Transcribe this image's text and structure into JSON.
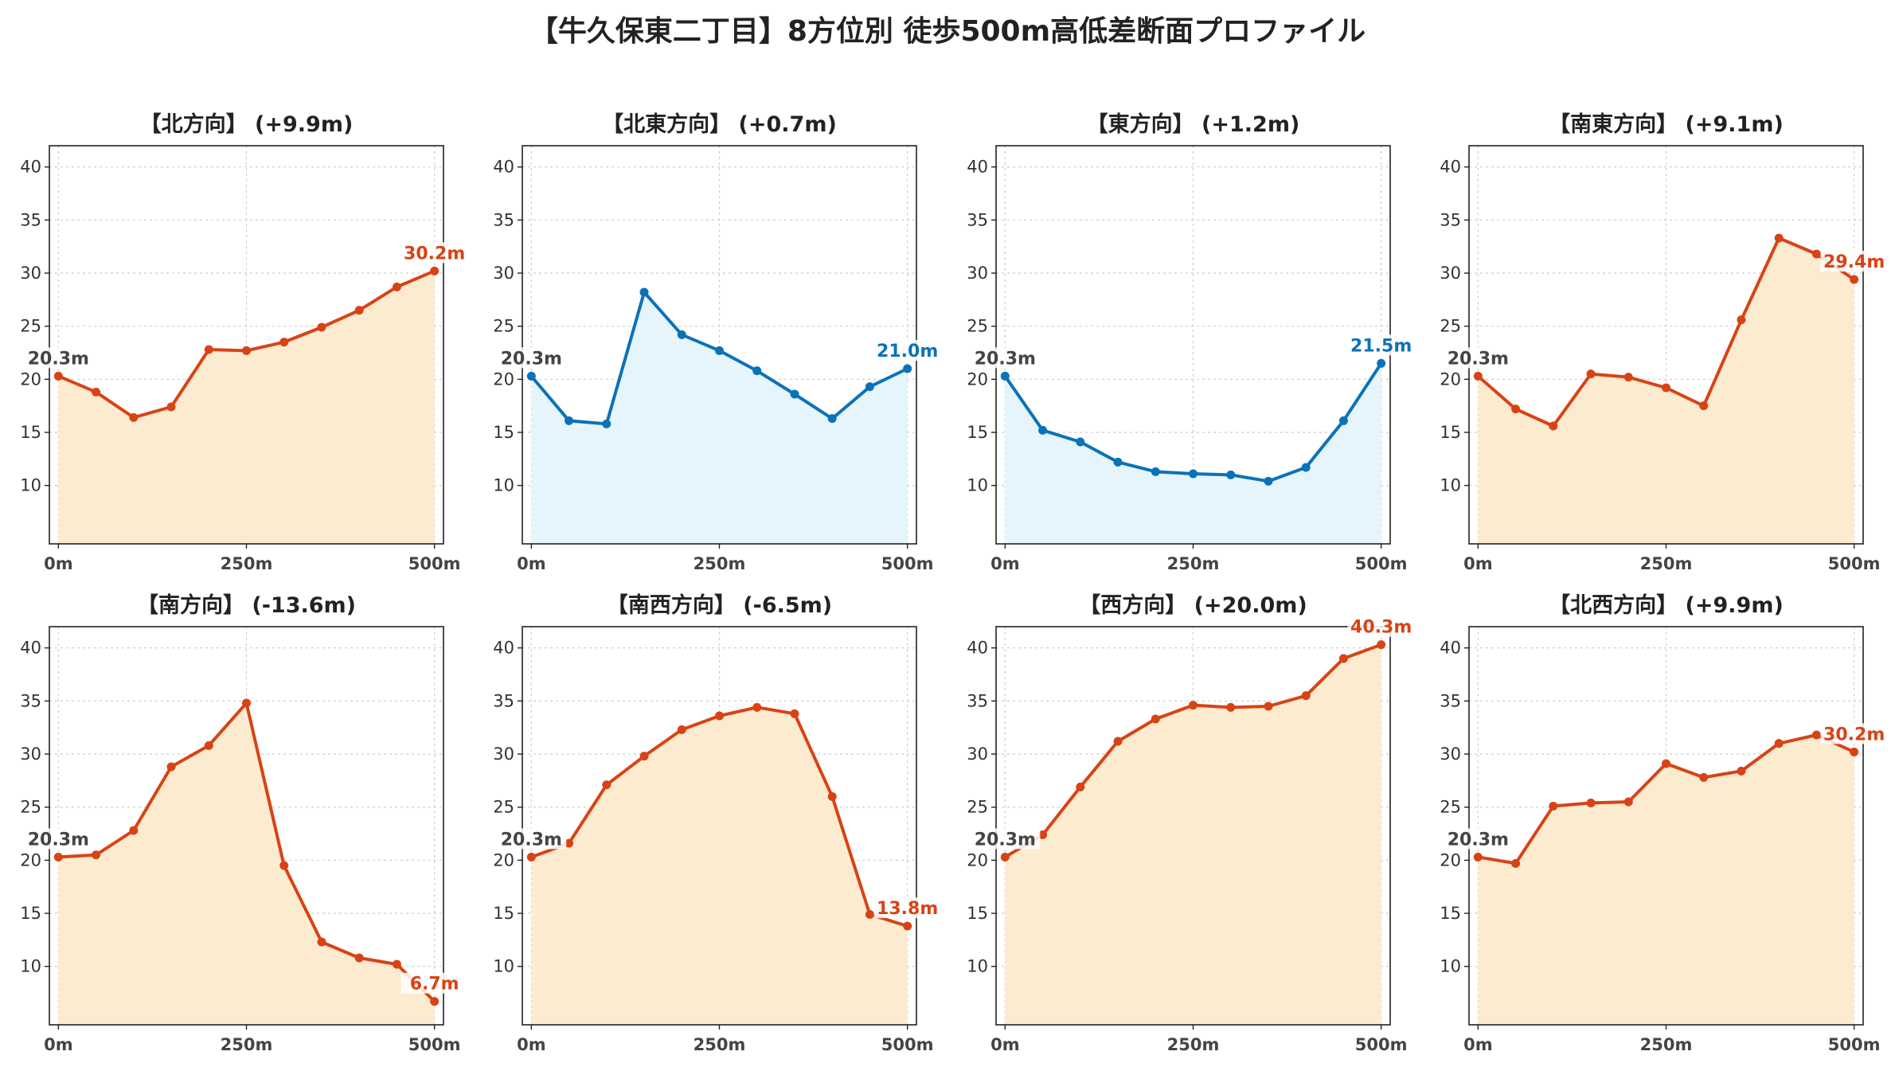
{
  "title": "【牛久保東二丁目】8方位別 徒歩500m高低差断面プロファイル",
  "colors": {
    "up_line": "#d84315",
    "up_fill": "#fdebd0",
    "down_line": "#0b72b8",
    "down_fill": "#e6f5fb",
    "start_label": "#444444",
    "grid": "#cccccc"
  },
  "chart_data": [
    {
      "type": "area",
      "title": "【北方向】 (+9.9m)",
      "trend": "up",
      "x": [
        0,
        50,
        100,
        150,
        200,
        250,
        300,
        350,
        400,
        450,
        500
      ],
      "values": [
        20.3,
        18.8,
        16.4,
        17.4,
        22.8,
        22.7,
        23.5,
        24.9,
        26.5,
        28.7,
        30.2
      ],
      "xticks": [
        0,
        250,
        500
      ],
      "xtick_labels": [
        "0m",
        "250m",
        "500m"
      ],
      "yticks": [
        10,
        15,
        20,
        25,
        30,
        35,
        40
      ],
      "ylim": [
        4.5,
        42
      ],
      "xlim": [
        -12,
        512
      ],
      "grid": true,
      "start_label": "20.3m",
      "end_label": "30.2m"
    },
    {
      "type": "area",
      "title": "【北東方向】 (+0.7m)",
      "trend": "down",
      "x": [
        0,
        50,
        100,
        150,
        200,
        250,
        300,
        350,
        400,
        450,
        500
      ],
      "values": [
        20.3,
        16.1,
        15.8,
        28.2,
        24.2,
        22.7,
        20.8,
        18.6,
        16.3,
        19.3,
        21.0
      ],
      "xticks": [
        0,
        250,
        500
      ],
      "xtick_labels": [
        "0m",
        "250m",
        "500m"
      ],
      "yticks": [
        10,
        15,
        20,
        25,
        30,
        35,
        40
      ],
      "ylim": [
        4.5,
        42
      ],
      "xlim": [
        -12,
        512
      ],
      "grid": true,
      "start_label": "20.3m",
      "end_label": "21.0m"
    },
    {
      "type": "area",
      "title": "【東方向】 (+1.2m)",
      "trend": "down",
      "x": [
        0,
        50,
        100,
        150,
        200,
        250,
        300,
        350,
        400,
        450,
        500
      ],
      "values": [
        20.3,
        15.2,
        14.1,
        12.2,
        11.3,
        11.1,
        11.0,
        10.4,
        11.7,
        16.1,
        21.5
      ],
      "xticks": [
        0,
        250,
        500
      ],
      "xtick_labels": [
        "0m",
        "250m",
        "500m"
      ],
      "yticks": [
        10,
        15,
        20,
        25,
        30,
        35,
        40
      ],
      "ylim": [
        4.5,
        42
      ],
      "xlim": [
        -12,
        512
      ],
      "grid": true,
      "start_label": "20.3m",
      "end_label": "21.5m"
    },
    {
      "type": "area",
      "title": "【南東方向】 (+9.1m)",
      "trend": "up",
      "x": [
        0,
        50,
        100,
        150,
        200,
        250,
        300,
        350,
        400,
        450,
        500
      ],
      "values": [
        20.3,
        17.2,
        15.6,
        20.5,
        20.2,
        19.2,
        17.5,
        25.6,
        33.3,
        31.8,
        29.4
      ],
      "xticks": [
        0,
        250,
        500
      ],
      "xtick_labels": [
        "0m",
        "250m",
        "500m"
      ],
      "yticks": [
        10,
        15,
        20,
        25,
        30,
        35,
        40
      ],
      "ylim": [
        4.5,
        42
      ],
      "xlim": [
        -12,
        512
      ],
      "grid": true,
      "start_label": "20.3m",
      "end_label": "29.4m"
    },
    {
      "type": "area",
      "title": "【南方向】 (-13.6m)",
      "trend": "up",
      "x": [
        0,
        50,
        100,
        150,
        200,
        250,
        300,
        350,
        400,
        450,
        500
      ],
      "values": [
        20.3,
        20.5,
        22.8,
        28.8,
        30.8,
        34.8,
        19.5,
        12.3,
        10.8,
        10.2,
        6.7
      ],
      "xticks": [
        0,
        250,
        500
      ],
      "xtick_labels": [
        "0m",
        "250m",
        "500m"
      ],
      "yticks": [
        10,
        15,
        20,
        25,
        30,
        35,
        40
      ],
      "ylim": [
        4.5,
        42
      ],
      "xlim": [
        -12,
        512
      ],
      "grid": true,
      "start_label": "20.3m",
      "end_label": "6.7m"
    },
    {
      "type": "area",
      "title": "【南西方向】 (-6.5m)",
      "trend": "up",
      "x": [
        0,
        50,
        100,
        150,
        200,
        250,
        300,
        350,
        400,
        450,
        500
      ],
      "values": [
        20.3,
        21.6,
        27.1,
        29.8,
        32.3,
        33.6,
        34.4,
        33.8,
        26.0,
        14.9,
        13.8
      ],
      "xticks": [
        0,
        250,
        500
      ],
      "xtick_labels": [
        "0m",
        "250m",
        "500m"
      ],
      "yticks": [
        10,
        15,
        20,
        25,
        30,
        35,
        40
      ],
      "ylim": [
        4.5,
        42
      ],
      "xlim": [
        -12,
        512
      ],
      "grid": true,
      "start_label": "20.3m",
      "end_label": "13.8m"
    },
    {
      "type": "area",
      "title": "【西方向】 (+20.0m)",
      "trend": "up",
      "x": [
        0,
        50,
        100,
        150,
        200,
        250,
        300,
        350,
        400,
        450,
        500
      ],
      "values": [
        20.3,
        22.4,
        26.9,
        31.2,
        33.3,
        34.6,
        34.4,
        34.5,
        35.5,
        39.0,
        40.3
      ],
      "xticks": [
        0,
        250,
        500
      ],
      "xtick_labels": [
        "0m",
        "250m",
        "500m"
      ],
      "yticks": [
        10,
        15,
        20,
        25,
        30,
        35,
        40
      ],
      "ylim": [
        4.5,
        42
      ],
      "xlim": [
        -12,
        512
      ],
      "grid": true,
      "start_label": "20.3m",
      "end_label": "40.3m"
    },
    {
      "type": "area",
      "title": "【北西方向】 (+9.9m)",
      "trend": "up",
      "x": [
        0,
        50,
        100,
        150,
        200,
        250,
        300,
        350,
        400,
        450,
        500
      ],
      "values": [
        20.3,
        19.7,
        25.1,
        25.4,
        25.5,
        29.1,
        27.8,
        28.4,
        31.0,
        31.8,
        30.2
      ],
      "xticks": [
        0,
        250,
        500
      ],
      "xtick_labels": [
        "0m",
        "250m",
        "500m"
      ],
      "yticks": [
        10,
        15,
        20,
        25,
        30,
        35,
        40
      ],
      "ylim": [
        4.5,
        42
      ],
      "xlim": [
        -12,
        512
      ],
      "grid": true,
      "start_label": "20.3m",
      "end_label": "30.2m"
    }
  ]
}
